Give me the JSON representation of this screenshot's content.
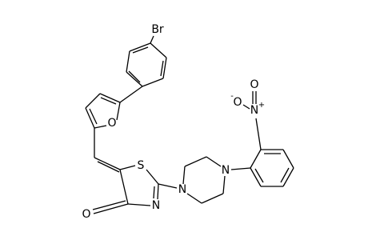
{
  "atoms": [
    "Br",
    "O",
    "S",
    "N",
    "O",
    "N",
    "N",
    "N",
    "O",
    "O"
  ],
  "charges": [
    "+",
    "-"
  ]
}
